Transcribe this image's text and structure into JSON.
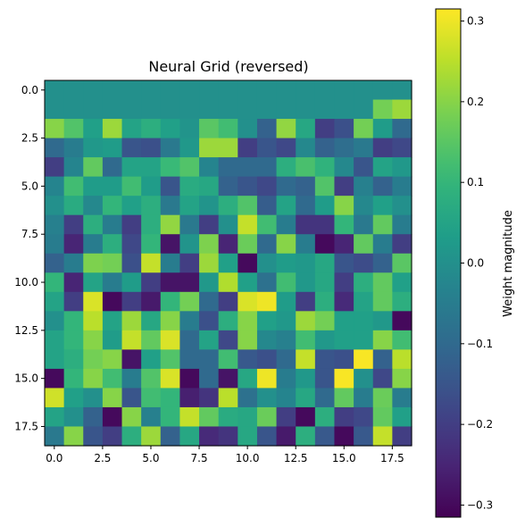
{
  "chart_data": {
    "type": "heatmap",
    "title": "Neural Grid (reversed)",
    "xlabel": "",
    "ylabel": "",
    "colormap": "viridis",
    "colorbar_label": "Weight magnitude",
    "value_range": [
      -0.315,
      0.315
    ],
    "colorbar_ticks": [
      -0.3,
      -0.2,
      -0.1,
      0.0,
      0.1,
      0.2,
      0.3
    ],
    "colorbar_tick_labels": [
      "−0.3",
      "−0.2",
      "−0.1",
      "0.0",
      "0.1",
      "0.2",
      "0.3"
    ],
    "x_ticks": [
      0.0,
      2.5,
      5.0,
      7.5,
      10.0,
      12.5,
      15.0,
      17.5
    ],
    "x_tick_labels": [
      "0.0",
      "2.5",
      "5.0",
      "7.5",
      "10.0",
      "12.5",
      "15.0",
      "17.5"
    ],
    "y_ticks": [
      0.0,
      2.5,
      5.0,
      7.5,
      10.0,
      12.5,
      15.0,
      17.5
    ],
    "y_tick_labels": [
      "0.0",
      "2.5",
      "5.0",
      "7.5",
      "10.0",
      "12.5",
      "15.0",
      "17.5"
    ],
    "xlim": [
      -0.5,
      18.5
    ],
    "ylim": [
      18.5,
      -0.5
    ],
    "grid": false,
    "rows": 19,
    "cols": 19,
    "values": [
      [
        0,
        0,
        0,
        0,
        0,
        0,
        0,
        0,
        0,
        0,
        0,
        0,
        0,
        0,
        0,
        0,
        0,
        0,
        0
      ],
      [
        0,
        0,
        0,
        0,
        0,
        0,
        0,
        0,
        0,
        0,
        0,
        0,
        0,
        0,
        0,
        0,
        0,
        0.18,
        0.22
      ],
      [
        0.2,
        0.14,
        0.04,
        0.22,
        0.05,
        0.08,
        0.04,
        0.01,
        0.15,
        0.12,
        0,
        -0.12,
        0.21,
        0.06,
        -0.2,
        -0.16,
        0.18,
        0.03,
        -0.1
      ],
      [
        -0.1,
        -0.05,
        0.02,
        0.03,
        -0.15,
        -0.16,
        -0.06,
        0.02,
        0.22,
        0.22,
        -0.2,
        -0.15,
        -0.18,
        -0.02,
        -0.12,
        -0.09,
        -0.06,
        -0.2,
        -0.18
      ],
      [
        -0.2,
        -0.03,
        0.16,
        -0.1,
        0.05,
        0.05,
        0.11,
        0.14,
        -0.03,
        -0.1,
        -0.1,
        -0.1,
        0.08,
        0.13,
        0.09,
        -0.02,
        -0.15,
        0.05,
        0.02
      ],
      [
        -0.03,
        0.12,
        0.03,
        0.03,
        0.12,
        0.03,
        -0.15,
        0.07,
        0.06,
        -0.12,
        -0.15,
        -0.18,
        -0.1,
        -0.12,
        0.14,
        -0.2,
        -0.04,
        -0.12,
        -0.05
      ],
      [
        0,
        0.07,
        -0.02,
        0.1,
        0.04,
        0.08,
        -0.06,
        0.05,
        0.01,
        0.08,
        0.14,
        -0.13,
        0.05,
        -0.1,
        0.03,
        0.2,
        -0.02,
        0.04,
        0
      ],
      [
        -0.04,
        -0.2,
        0.08,
        -0.05,
        -0.2,
        0.08,
        0.21,
        -0.06,
        -0.2,
        0,
        0.26,
        0.12,
        -0.05,
        -0.22,
        -0.22,
        0.1,
        -0.06,
        0.16,
        -0.05
      ],
      [
        -0.05,
        -0.25,
        -0.05,
        0.08,
        -0.18,
        0.1,
        -0.28,
        0.01,
        0.19,
        -0.25,
        0.17,
        -0.1,
        0.2,
        -0.05,
        -0.3,
        -0.25,
        0.16,
        -0.05,
        -0.2
      ],
      [
        -0.12,
        -0.05,
        0.19,
        0.18,
        -0.16,
        0.26,
        -0.05,
        -0.2,
        0.22,
        0.04,
        -0.3,
        0,
        0.03,
        0.02,
        0.06,
        -0.15,
        -0.17,
        -0.12,
        0.15
      ],
      [
        0.1,
        -0.25,
        0.05,
        -0.05,
        0.03,
        -0.2,
        -0.28,
        -0.28,
        0.02,
        0.24,
        0.04,
        -0.08,
        0.12,
        0.02,
        0.06,
        -0.2,
        0.08,
        0.16,
        0.04
      ],
      [
        0.05,
        -0.2,
        0.28,
        -0.3,
        -0.2,
        -0.27,
        0.1,
        0.18,
        -0.1,
        -0.2,
        0.28,
        0.3,
        0.03,
        -0.2,
        0.08,
        -0.24,
        0.05,
        0.16,
        0.08
      ],
      [
        0,
        0.1,
        0.25,
        0.05,
        0.22,
        0.06,
        0.2,
        -0.05,
        -0.16,
        0.08,
        0.2,
        0.04,
        0.02,
        0.22,
        0.18,
        0.04,
        0.04,
        0.02,
        -0.3
      ],
      [
        0.05,
        0.1,
        0.2,
        0.03,
        0.26,
        0.16,
        0.28,
        -0.1,
        0.05,
        -0.18,
        0.2,
        -0.02,
        -0.04,
        0.12,
        0.02,
        0.04,
        0.04,
        0.2,
        0.12
      ],
      [
        0.05,
        0.08,
        0.18,
        0.2,
        -0.28,
        0.04,
        0.14,
        -0.1,
        -0.1,
        0.12,
        -0.14,
        -0.16,
        -0.1,
        0.26,
        -0.15,
        -0.16,
        0.31,
        -0.12,
        0.25
      ],
      [
        -0.3,
        0.1,
        0.2,
        0.12,
        -0.05,
        0.14,
        0.28,
        -0.3,
        -0.1,
        -0.28,
        0.06,
        0.3,
        -0.05,
        0.02,
        -0.15,
        0.31,
        0.0,
        -0.18,
        0.2
      ],
      [
        0.27,
        0.04,
        0,
        0.2,
        -0.15,
        0.12,
        0.1,
        -0.26,
        -0.22,
        0.25,
        -0.08,
        0.0,
        -0.03,
        0.06,
        -0.1,
        0.16,
        -0.05,
        0.17,
        -0.05
      ],
      [
        0.05,
        0,
        -0.12,
        -0.3,
        0.2,
        -0.04,
        0.1,
        0.26,
        0.16,
        0.07,
        0.06,
        0.17,
        -0.2,
        -0.3,
        0.08,
        -0.2,
        -0.18,
        0.16,
        0.04
      ],
      [
        -0.06,
        0.2,
        -0.15,
        -0.2,
        0.08,
        0.22,
        -0.12,
        0.06,
        -0.24,
        -0.22,
        0.06,
        -0.15,
        -0.27,
        0.08,
        -0.14,
        -0.3,
        -0.14,
        0.26,
        -0.2
      ]
    ]
  }
}
